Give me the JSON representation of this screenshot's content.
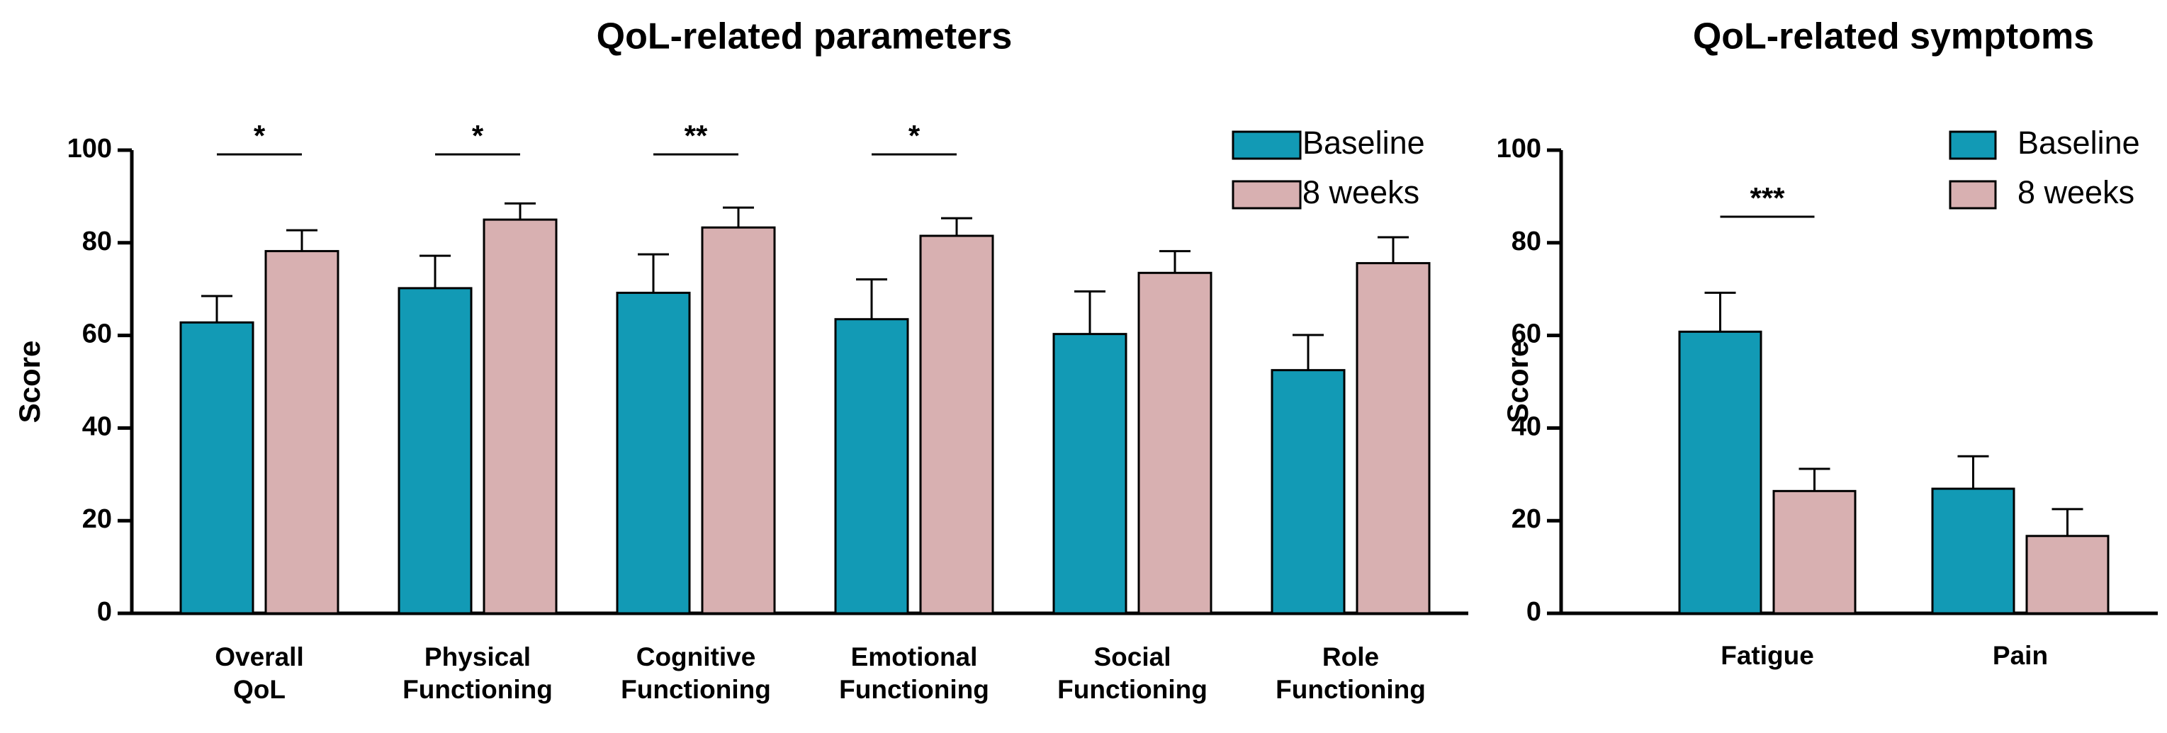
{
  "colors": {
    "baseline": "#129AB5",
    "weeks8": "#D8B0B1",
    "stroke": "#000000"
  },
  "chart_data": [
    {
      "type": "bar",
      "title": "QoL-related parameters",
      "ylabel": "Score",
      "ylim": [
        0,
        100
      ],
      "yticks": [
        0,
        20,
        40,
        60,
        80,
        100
      ],
      "legend": "top-right",
      "categories": [
        [
          "Overall",
          "QoL"
        ],
        [
          "Physical",
          "Functioning"
        ],
        [
          "Cognitive",
          "Functioning"
        ],
        [
          "Emotional",
          "Functioning"
        ],
        [
          "Social",
          "Functioning"
        ],
        [
          "Role",
          "Functioning"
        ]
      ],
      "series": [
        {
          "name": "Baseline",
          "values": [
            62.8,
            70.2,
            69.2,
            63.5,
            60.3,
            52.5
          ],
          "errors": [
            5.7,
            7.0,
            8.3,
            8.6,
            9.2,
            7.6
          ]
        },
        {
          "name": "8 weeks",
          "values": [
            78.2,
            85.0,
            83.3,
            81.5,
            73.5,
            75.6
          ],
          "errors": [
            4.5,
            3.5,
            4.3,
            3.8,
            4.7,
            5.6
          ]
        }
      ],
      "significance": [
        {
          "category_index": 0,
          "label": "*"
        },
        {
          "category_index": 1,
          "label": "*"
        },
        {
          "category_index": 2,
          "label": "**"
        },
        {
          "category_index": 3,
          "label": "*"
        }
      ]
    },
    {
      "type": "bar",
      "title": "QoL-related symptoms",
      "ylabel": "Score",
      "ylim": [
        0,
        100
      ],
      "yticks": [
        0,
        20,
        40,
        60,
        80,
        100
      ],
      "legend": "top-right",
      "categories": [
        [
          "Fatigue"
        ],
        [
          "Pain"
        ]
      ],
      "series": [
        {
          "name": "Baseline",
          "values": [
            60.8,
            26.9
          ],
          "errors": [
            8.4,
            7.0
          ]
        },
        {
          "name": "8 weeks",
          "values": [
            26.4,
            16.7
          ],
          "errors": [
            4.8,
            5.8
          ]
        }
      ],
      "significance": [
        {
          "category_index": 0,
          "label": "***"
        }
      ]
    }
  ]
}
